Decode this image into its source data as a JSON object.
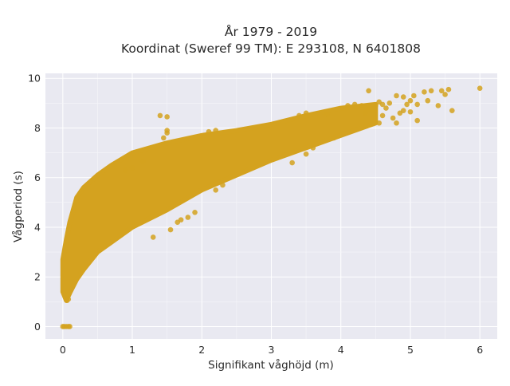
{
  "chart_data": {
    "type": "scatter",
    "title_line1": "År 1979 - 2019",
    "title_line2": "Koordinat (Sweref 99 TM): E 293108, N 6401808",
    "xlabel": "Signifikant våghöjd (m)",
    "ylabel": "Vågperiod (s)",
    "xlim": [
      -0.25,
      6.25
    ],
    "ylim": [
      -0.5,
      10.2
    ],
    "xticks": [
      "0",
      "1",
      "2",
      "3",
      "4",
      "5",
      "6"
    ],
    "yticks": [
      "0",
      "2",
      "4",
      "6",
      "8",
      "10"
    ],
    "grid": true,
    "marker_color": "#D4A21F",
    "plot_background": "#E9E9F1",
    "band_lower": [
      [
        0.0,
        1.4
      ],
      [
        0.05,
        1.05
      ],
      [
        0.1,
        1.35
      ],
      [
        0.2,
        1.9
      ],
      [
        0.3,
        2.3
      ],
      [
        0.5,
        3.0
      ],
      [
        0.7,
        3.4
      ],
      [
        1.0,
        4.0
      ],
      [
        1.5,
        4.7
      ],
      [
        2.0,
        5.5
      ],
      [
        2.5,
        6.1
      ],
      [
        3.0,
        6.7
      ],
      [
        3.5,
        7.2
      ],
      [
        4.0,
        7.7
      ],
      [
        4.5,
        8.2
      ]
    ],
    "band_upper": [
      [
        0.0,
        2.7
      ],
      [
        0.05,
        3.5
      ],
      [
        0.1,
        4.2
      ],
      [
        0.2,
        5.2
      ],
      [
        0.3,
        5.6
      ],
      [
        0.5,
        6.1
      ],
      [
        0.7,
        6.5
      ],
      [
        1.0,
        7.0
      ],
      [
        1.5,
        7.4
      ],
      [
        2.0,
        7.7
      ],
      [
        2.5,
        7.9
      ],
      [
        3.0,
        8.15
      ],
      [
        3.5,
        8.5
      ],
      [
        4.0,
        8.8
      ],
      [
        4.5,
        8.95
      ]
    ],
    "points": [
      [
        0.0,
        0.0
      ],
      [
        0.02,
        0.0
      ],
      [
        0.05,
        0.0
      ],
      [
        0.08,
        0.0
      ],
      [
        0.1,
        0.0
      ],
      [
        0.06,
        1.05
      ],
      [
        0.08,
        1.1
      ],
      [
        1.4,
        8.5
      ],
      [
        1.5,
        8.45
      ],
      [
        1.45,
        7.6
      ],
      [
        1.5,
        7.9
      ],
      [
        1.5,
        7.8
      ],
      [
        1.15,
        6.65
      ],
      [
        0.9,
        6.3
      ],
      [
        1.0,
        6.4
      ],
      [
        1.65,
        4.2
      ],
      [
        1.7,
        4.3
      ],
      [
        1.3,
        3.6
      ],
      [
        1.55,
        3.9
      ],
      [
        1.9,
        4.6
      ],
      [
        2.3,
        5.7
      ],
      [
        2.2,
        5.5
      ],
      [
        1.8,
        4.4
      ],
      [
        2.1,
        7.85
      ],
      [
        2.2,
        7.9
      ],
      [
        3.4,
        8.5
      ],
      [
        3.5,
        8.6
      ],
      [
        3.8,
        8.55
      ],
      [
        3.3,
        6.6
      ],
      [
        3.5,
        6.95
      ],
      [
        3.6,
        7.2
      ],
      [
        3.9,
        7.6
      ],
      [
        4.1,
        8.9
      ],
      [
        4.2,
        8.95
      ],
      [
        4.3,
        8.9
      ],
      [
        4.35,
        8.6
      ],
      [
        4.4,
        8.75
      ],
      [
        4.5,
        8.9
      ],
      [
        4.6,
        8.95
      ],
      [
        4.7,
        9.0
      ],
      [
        4.55,
        9.05
      ],
      [
        4.45,
        8.7
      ],
      [
        4.55,
        8.2
      ],
      [
        4.6,
        8.5
      ],
      [
        4.65,
        8.8
      ],
      [
        4.75,
        8.4
      ],
      [
        4.8,
        8.2
      ],
      [
        4.85,
        8.6
      ],
      [
        4.9,
        8.7
      ],
      [
        4.95,
        8.95
      ],
      [
        5.0,
        9.1
      ],
      [
        5.05,
        9.3
      ],
      [
        5.1,
        8.95
      ],
      [
        5.0,
        8.65
      ],
      [
        4.4,
        9.5
      ],
      [
        4.8,
        9.3
      ],
      [
        4.9,
        9.25
      ],
      [
        5.1,
        8.3
      ],
      [
        5.2,
        9.45
      ],
      [
        5.25,
        9.1
      ],
      [
        5.3,
        9.5
      ],
      [
        5.45,
        9.5
      ],
      [
        5.5,
        9.35
      ],
      [
        5.55,
        9.55
      ],
      [
        5.4,
        8.9
      ],
      [
        5.6,
        8.7
      ],
      [
        6.0,
        9.6
      ]
    ]
  }
}
